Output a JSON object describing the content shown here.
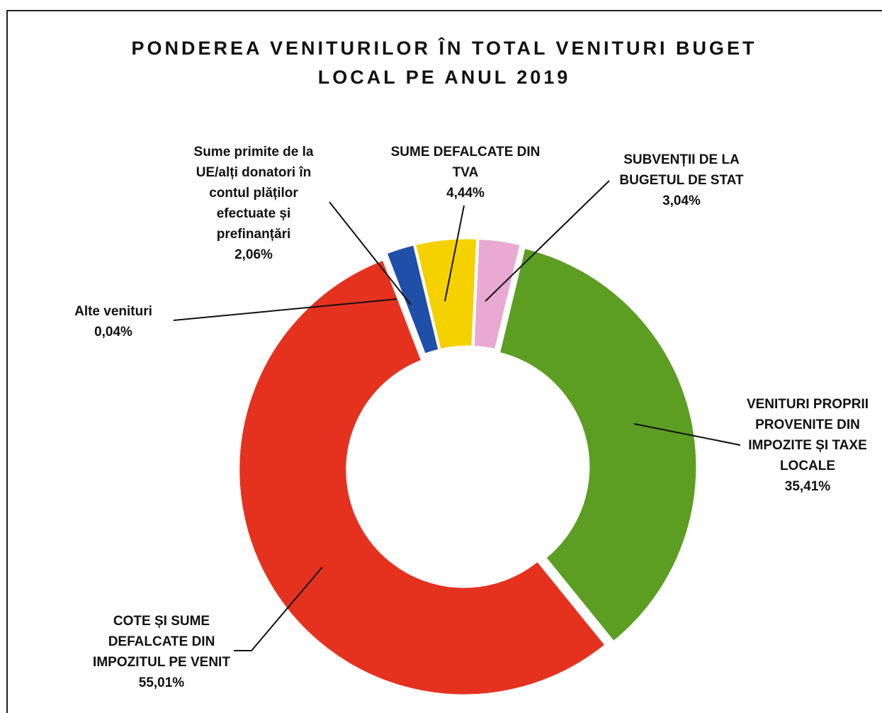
{
  "chart_data": {
    "type": "pie",
    "donut": true,
    "title": [
      "PONDEREA VENITURILOR ÎN TOTAL VENITURI BUGET",
      "LOCAL PE ANUL 2019"
    ],
    "categories": [
      [
        "VENITURI PROPRII",
        "PROVENITE DIN",
        "IMPOZITE ȘI TAXE",
        "LOCALE"
      ],
      [
        "COTE ȘI SUME",
        "DEFALCATE DIN",
        "IMPOZITUL PE VENIT"
      ],
      [
        "Alte venituri"
      ],
      [
        "Sume primite de la",
        "UE/alți donatori  în",
        "contul plăților",
        "efectuate și",
        "prefinanțări"
      ],
      [
        "SUME DEFALCATE DIN",
        "TVA"
      ],
      [
        "SUBVENȚII DE LA",
        "BUGETUL DE STAT"
      ]
    ],
    "values": [
      35.41,
      55.01,
      0.04,
      2.06,
      4.44,
      3.04
    ],
    "value_labels": [
      "35,41%",
      "55,01%",
      "0,04%",
      "2,06%",
      "4,44%",
      "3,04%"
    ],
    "colors": [
      "#5c9e22",
      "#e5321f",
      "#9a9a9a",
      "#1f4fa8",
      "#f6d100",
      "#e9a9d2"
    ]
  }
}
